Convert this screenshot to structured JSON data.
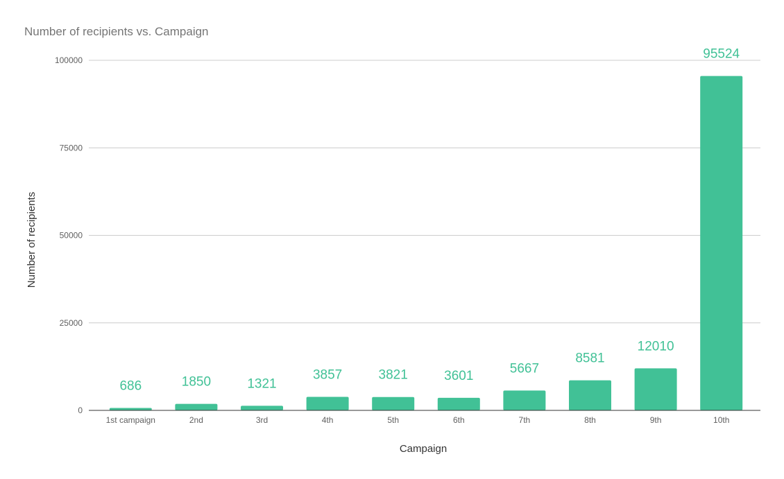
{
  "chart_data": {
    "type": "bar",
    "title": "Number of recipients vs. Campaign",
    "xlabel": "Campaign",
    "ylabel": "Number of recipients",
    "categories": [
      "1st campaign",
      "2nd",
      "3rd",
      "4th",
      "5th",
      "6th",
      "7th",
      "8th",
      "9th",
      "10th"
    ],
    "values": [
      686,
      1850,
      1321,
      3857,
      3821,
      3601,
      5667,
      8581,
      12010,
      95524
    ],
    "data_labels": [
      "686",
      "1850",
      "1321",
      "3857",
      "3821",
      "3601",
      "5667",
      "8581",
      "12010",
      "95524"
    ],
    "ylim": [
      0,
      100000
    ],
    "yticks": [
      0,
      25000,
      50000,
      75000,
      100000
    ],
    "ytick_labels": [
      "0",
      "25000",
      "50000",
      "75000",
      "100000"
    ],
    "grid": true,
    "legend": "none",
    "bar_color": "#41c196",
    "label_color": "#41c196",
    "grid_color": "#cccccc",
    "axis_color": "#333333"
  }
}
